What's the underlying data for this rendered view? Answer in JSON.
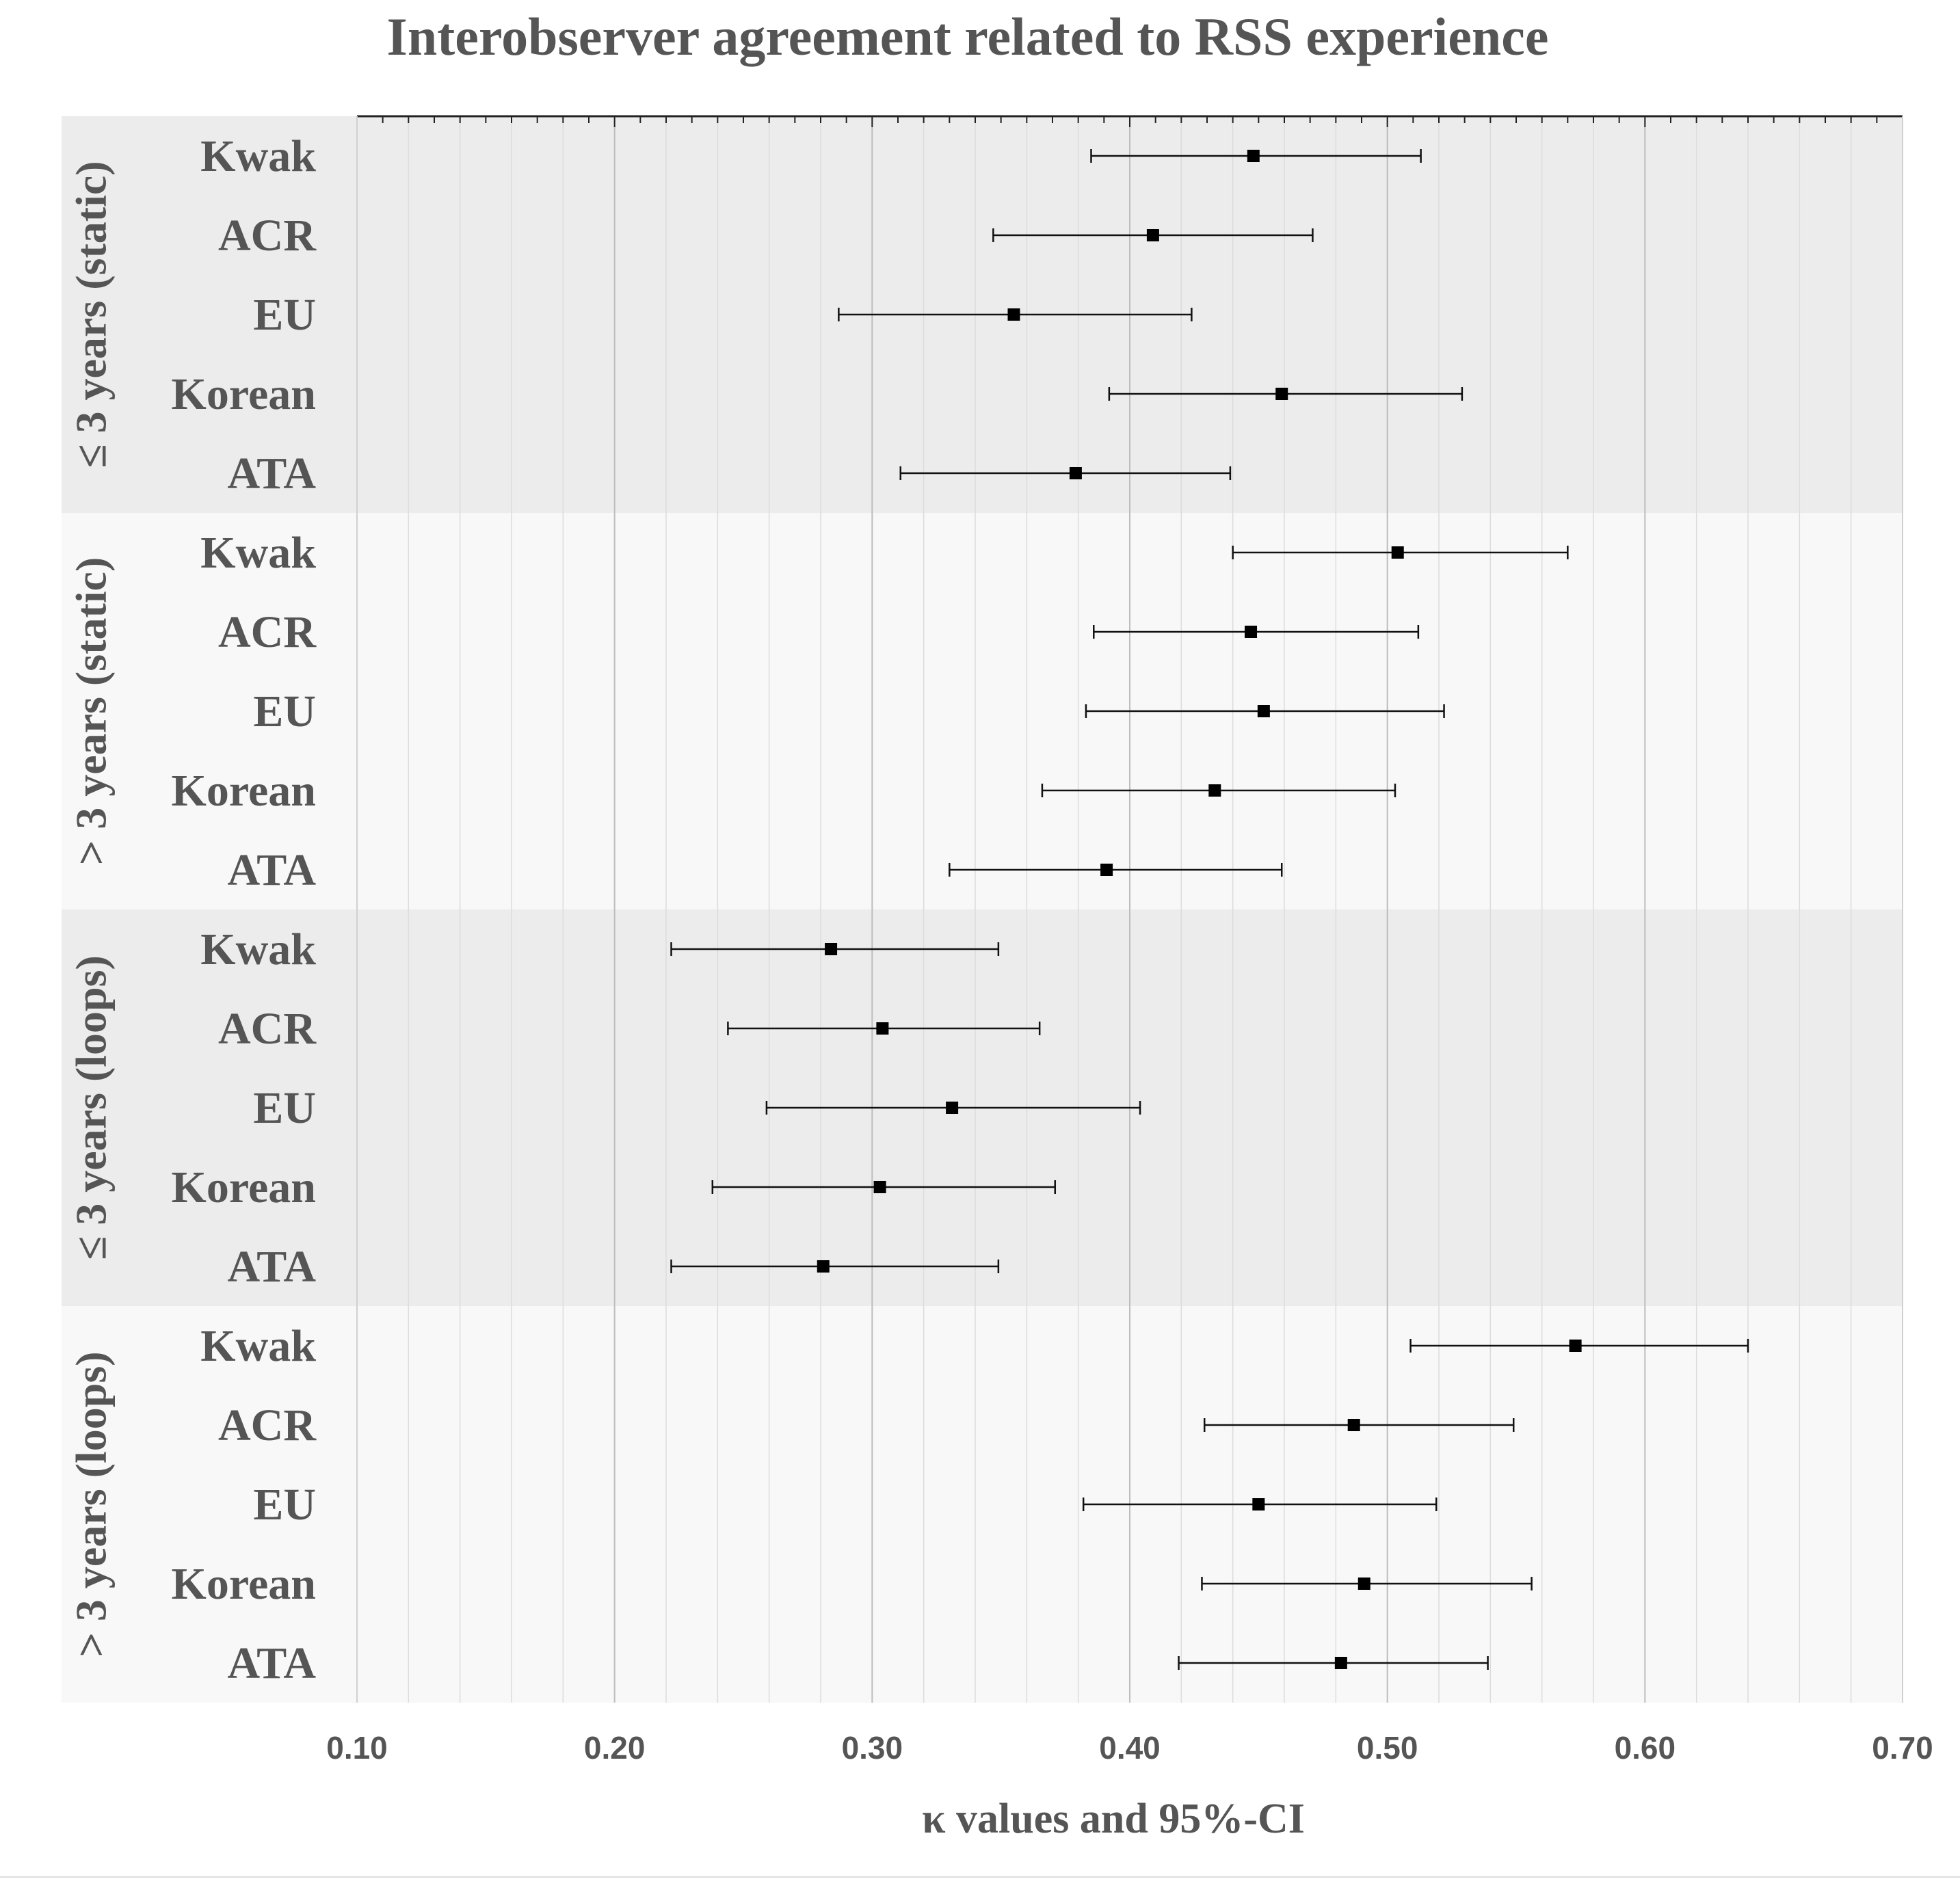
{
  "chart_data": {
    "type": "forest",
    "title": "Interobserver agreement related to RSS experience",
    "xlabel": "κ values and 95%-CI",
    "xlim": [
      0.1,
      0.7
    ],
    "xticks": [
      "0.10",
      "0.20",
      "0.30",
      "0.40",
      "0.50",
      "0.60",
      "0.70"
    ],
    "xtick_values": [
      0.1,
      0.2,
      0.3,
      0.4,
      0.5,
      0.6,
      0.7
    ],
    "minor_tick_step": 0.01,
    "grid": true,
    "groups": [
      {
        "label": "≤ 3 years (static)",
        "shade": "#ececec",
        "rows": [
          {
            "label": "Kwak",
            "value": 0.448,
            "lower": 0.385,
            "upper": 0.513
          },
          {
            "label": "ACR",
            "value": 0.409,
            "lower": 0.347,
            "upper": 0.471
          },
          {
            "label": "EU",
            "value": 0.355,
            "lower": 0.287,
            "upper": 0.424
          },
          {
            "label": "Korean",
            "value": 0.459,
            "lower": 0.392,
            "upper": 0.529
          },
          {
            "label": "ATA",
            "value": 0.379,
            "lower": 0.311,
            "upper": 0.439
          }
        ]
      },
      {
        "label": "> 3 years (static)",
        "shade": "#f8f8f8",
        "rows": [
          {
            "label": "Kwak",
            "value": 0.504,
            "lower": 0.44,
            "upper": 0.57
          },
          {
            "label": "ACR",
            "value": 0.447,
            "lower": 0.386,
            "upper": 0.512
          },
          {
            "label": "EU",
            "value": 0.452,
            "lower": 0.383,
            "upper": 0.522
          },
          {
            "label": "Korean",
            "value": 0.433,
            "lower": 0.366,
            "upper": 0.503
          },
          {
            "label": "ATA",
            "value": 0.391,
            "lower": 0.33,
            "upper": 0.459
          }
        ]
      },
      {
        "label": "≤ 3 years (loops)",
        "shade": "#ececec",
        "rows": [
          {
            "label": "Kwak",
            "value": 0.284,
            "lower": 0.222,
            "upper": 0.349
          },
          {
            "label": "ACR",
            "value": 0.304,
            "lower": 0.244,
            "upper": 0.365
          },
          {
            "label": "EU",
            "value": 0.331,
            "lower": 0.259,
            "upper": 0.404
          },
          {
            "label": "Korean",
            "value": 0.303,
            "lower": 0.238,
            "upper": 0.371
          },
          {
            "label": "ATA",
            "value": 0.281,
            "lower": 0.222,
            "upper": 0.349
          }
        ]
      },
      {
        "label": "> 3 years (loops)",
        "shade": "#f8f8f8",
        "rows": [
          {
            "label": "Kwak",
            "value": 0.573,
            "lower": 0.509,
            "upper": 0.64
          },
          {
            "label": "ACR",
            "value": 0.487,
            "lower": 0.429,
            "upper": 0.549
          },
          {
            "label": "EU",
            "value": 0.45,
            "lower": 0.382,
            "upper": 0.519
          },
          {
            "label": "Korean",
            "value": 0.491,
            "lower": 0.428,
            "upper": 0.556
          },
          {
            "label": "ATA",
            "value": 0.482,
            "lower": 0.419,
            "upper": 0.539
          }
        ]
      }
    ]
  }
}
